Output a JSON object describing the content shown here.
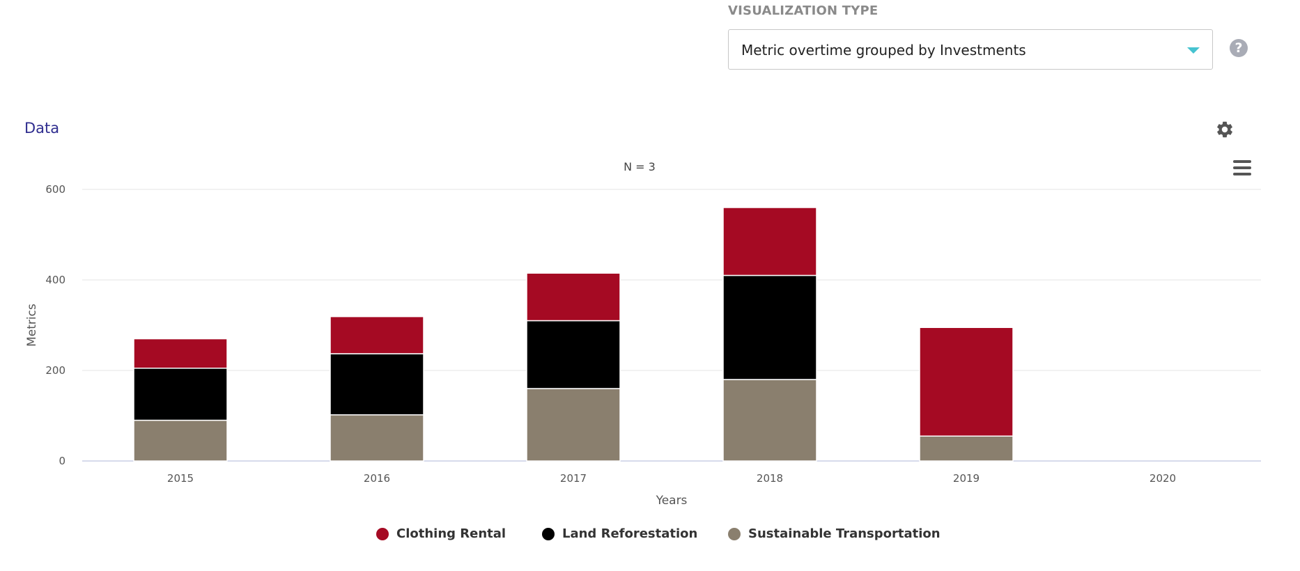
{
  "header": {
    "viz_label": "VISUALIZATION TYPE",
    "selected_viz": "Metric overtime grouped by Investments",
    "help_icon": "question-circle-icon"
  },
  "section": {
    "title": "Data",
    "settings_icon": "gear-icon",
    "menu_icon": "hamburger-menu-icon"
  },
  "chart_data": {
    "type": "bar",
    "stacked": true,
    "subtitle": "N = 3",
    "xlabel": "Years",
    "ylabel": "Metrics",
    "ylim": [
      0,
      600
    ],
    "yticks": [
      0,
      200,
      400,
      600
    ],
    "categories": [
      "2015",
      "2016",
      "2017",
      "2018",
      "2019",
      "2020"
    ],
    "series": [
      {
        "name": "Sustainable Transportation",
        "color": "#8a7f6e",
        "values": [
          90,
          102,
          160,
          180,
          55,
          0
        ]
      },
      {
        "name": "Land Reforestation",
        "color": "#000000",
        "values": [
          115,
          135,
          150,
          230,
          0,
          0
        ]
      },
      {
        "name": "Clothing Rental",
        "color": "#a50a23",
        "values": [
          65,
          82,
          105,
          150,
          240,
          0
        ]
      }
    ],
    "legend_position": "bottom",
    "grid": true
  },
  "legend": [
    {
      "label": "Clothing Rental",
      "color": "#a50a23"
    },
    {
      "label": "Land Reforestation",
      "color": "#000000"
    },
    {
      "label": "Sustainable Transportation",
      "color": "#8a7f6e"
    }
  ]
}
